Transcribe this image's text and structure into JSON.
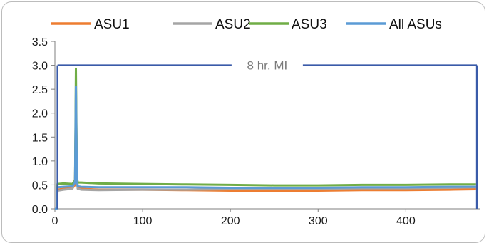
{
  "chart_data": {
    "type": "line",
    "title": "",
    "xlabel": "",
    "ylabel": "",
    "xlim": [
      0,
      485
    ],
    "ylim": [
      0,
      3.5
    ],
    "x_ticks": [
      "0",
      "100",
      "200",
      "300",
      "400"
    ],
    "y_ticks": [
      "0.0",
      "0.5",
      "1.0",
      "1.5",
      "2.0",
      "2.5",
      "3.0",
      "3.5"
    ],
    "grid": false,
    "legend_position": "top",
    "series": [
      {
        "name": "ASU1",
        "color": "#ED7D31",
        "x": [
          0,
          2,
          3,
          10,
          20,
          23,
          24,
          25,
          26,
          30,
          50,
          100,
          150,
          200,
          250,
          300,
          350,
          400,
          450,
          480
        ],
        "y": [
          0.0,
          0.0,
          0.4,
          0.42,
          0.43,
          0.5,
          2.2,
          0.6,
          0.44,
          0.42,
          0.4,
          0.4,
          0.39,
          0.38,
          0.38,
          0.38,
          0.39,
          0.39,
          0.4,
          0.41
        ]
      },
      {
        "name": "ASU2",
        "color": "#A5A5A5",
        "x": [
          0,
          2,
          3,
          10,
          20,
          23,
          24,
          25,
          26,
          30,
          50,
          100,
          150,
          200,
          250,
          300,
          350,
          400,
          450,
          480
        ],
        "y": [
          0.0,
          0.0,
          0.38,
          0.4,
          0.42,
          0.6,
          2.4,
          0.7,
          0.42,
          0.4,
          0.39,
          0.4,
          0.4,
          0.41,
          0.42,
          0.42,
          0.43,
          0.43,
          0.44,
          0.45
        ]
      },
      {
        "name": "ASU3",
        "color": "#70AD47",
        "x": [
          0,
          2,
          3,
          10,
          20,
          23,
          24,
          25,
          26,
          30,
          50,
          100,
          150,
          200,
          250,
          300,
          350,
          400,
          450,
          480
        ],
        "y": [
          0.0,
          0.0,
          0.52,
          0.53,
          0.52,
          0.6,
          2.93,
          0.7,
          0.55,
          0.55,
          0.53,
          0.52,
          0.51,
          0.5,
          0.49,
          0.49,
          0.5,
          0.5,
          0.51,
          0.51
        ]
      },
      {
        "name": "All ASUs",
        "color": "#5B9BD5",
        "x": [
          0,
          2,
          3,
          10,
          20,
          23,
          24,
          25,
          26,
          30,
          50,
          100,
          150,
          200,
          250,
          300,
          350,
          400,
          450,
          480
        ],
        "y": [
          0.0,
          0.0,
          0.45,
          0.46,
          0.47,
          0.55,
          2.55,
          0.65,
          0.47,
          0.46,
          0.45,
          0.45,
          0.45,
          0.44,
          0.44,
          0.44,
          0.45,
          0.45,
          0.46,
          0.46
        ]
      }
    ],
    "annotations": [
      {
        "label": "8 hr. MI",
        "x_start": 3,
        "x_end": 481,
        "y": 3.0,
        "color": "#3A5BA9"
      }
    ]
  }
}
